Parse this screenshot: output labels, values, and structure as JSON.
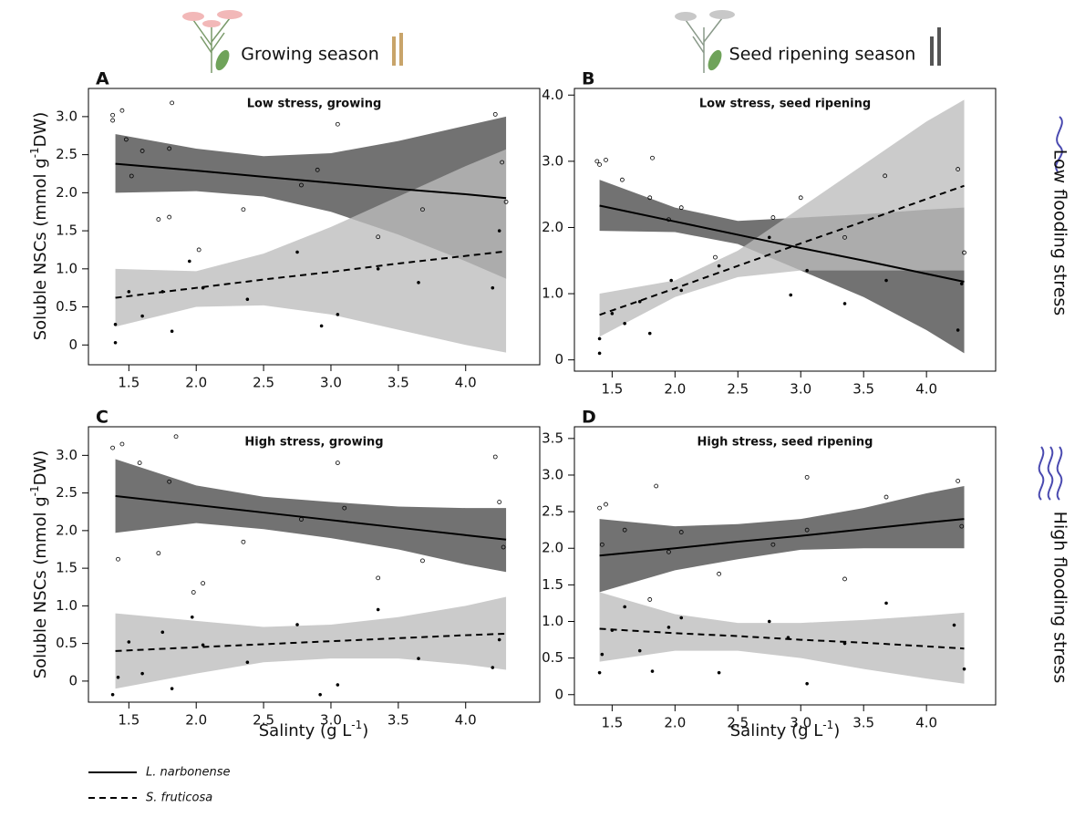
{
  "header": {
    "seasons": [
      "Growing season",
      "Seed ripening season"
    ],
    "flooding": [
      "Low flooding stress",
      "High flooding stress"
    ]
  },
  "axes": {
    "y_label": [
      "Soluble NSCs (mmol g",
      "-1",
      "DW)"
    ],
    "x_label": [
      "Salinty (g L",
      "-1",
      ")"
    ]
  },
  "chart_data": [
    {
      "type": "line",
      "panel_label": "A",
      "title": "Low stress, growing",
      "xlim": [
        1.2,
        4.55
      ],
      "xticks": [
        1.5,
        {
          "value": 2,
          "label": "2.0"
        },
        2.5,
        {
          "value": 3,
          "label": "3.0"
        },
        3.5,
        {
          "value": 4,
          "label": "4.0"
        }
      ],
      "ylim": [
        -0.26,
        3.37
      ],
      "yticks": [
        0,
        0.5,
        {
          "value": 1,
          "label": "1.0"
        },
        1.5,
        {
          "value": 2,
          "label": "2.0"
        },
        2.5,
        {
          "value": 3,
          "label": "3.0"
        }
      ],
      "series": [
        {
          "name": "L. narbonense",
          "line_style": "solid",
          "color": "#000000",
          "band_color": "#4a4a4a",
          "x": [
            1.4,
            2.0,
            2.5,
            3.0,
            3.5,
            4.0,
            4.3
          ],
          "values": [
            2.38,
            2.29,
            2.21,
            2.13,
            2.05,
            1.98,
            1.93
          ],
          "lower": [
            2.0,
            2.02,
            1.95,
            1.75,
            1.45,
            1.1,
            0.87
          ],
          "upper": [
            2.77,
            2.58,
            2.48,
            2.52,
            2.68,
            2.88,
            3.0
          ],
          "points": {
            "marker": "open",
            "x": [
              1.38,
              1.38,
              1.45,
              1.48,
              1.52,
              1.6,
              1.82,
              1.8,
              1.72,
              1.8,
              2.02,
              2.35,
              2.78,
              2.9,
              3.05,
              3.35,
              3.68,
              4.22,
              4.27,
              4.3
            ],
            "y": [
              3.02,
              2.95,
              3.08,
              2.7,
              2.22,
              2.55,
              3.18,
              2.58,
              1.65,
              1.68,
              1.25,
              1.78,
              2.1,
              2.3,
              2.9,
              1.42,
              1.78,
              3.03,
              2.4,
              1.88
            ]
          }
        },
        {
          "name": "S. fruticosa",
          "line_style": "dashed",
          "color": "#000000",
          "band_color": "#bdbdbd",
          "x": [
            1.4,
            2.0,
            2.5,
            3.0,
            3.5,
            4.0,
            4.3
          ],
          "values": [
            0.62,
            0.75,
            0.86,
            0.96,
            1.07,
            1.17,
            1.23
          ],
          "lower": [
            0.24,
            0.5,
            0.52,
            0.4,
            0.2,
            0.0,
            -0.1
          ],
          "upper": [
            1.0,
            0.97,
            1.2,
            1.55,
            1.95,
            2.35,
            2.57
          ],
          "points": {
            "marker": "filled",
            "x": [
              1.4,
              1.4,
              1.5,
              1.6,
              1.75,
              1.82,
              1.95,
              2.05,
              2.38,
              2.75,
              2.93,
              3.05,
              3.35,
              3.65,
              4.2,
              4.25
            ],
            "y": [
              0.03,
              0.27,
              0.7,
              0.38,
              0.7,
              0.18,
              1.1,
              0.75,
              0.6,
              1.22,
              0.25,
              0.4,
              1.0,
              0.82,
              0.75,
              1.5
            ]
          }
        }
      ]
    },
    {
      "type": "line",
      "panel_label": "B",
      "title": "Low stress, seed ripening",
      "xlim": [
        1.2,
        4.55
      ],
      "xticks": [
        1.5,
        {
          "value": 2,
          "label": "2.0"
        },
        2.5,
        {
          "value": 3,
          "label": "3.0"
        },
        3.5,
        {
          "value": 4,
          "label": "4.0"
        }
      ],
      "ylim": [
        -0.17,
        4.1
      ],
      "yticks": [
        0,
        {
          "value": 1,
          "label": "1.0"
        },
        {
          "value": 2,
          "label": "2.0"
        },
        {
          "value": 3,
          "label": "3.0"
        },
        {
          "value": 4,
          "label": "4.0"
        }
      ],
      "series": [
        {
          "line_style": "solid",
          "color": "#000000",
          "band_color": "#4a4a4a",
          "x": [
            1.4,
            2.0,
            2.5,
            3.0,
            3.5,
            4.0,
            4.3
          ],
          "values": [
            2.33,
            2.09,
            1.89,
            1.69,
            1.5,
            1.3,
            1.18
          ],
          "lower": [
            1.95,
            1.93,
            1.75,
            1.35,
            0.95,
            0.45,
            0.1
          ],
          "upper": [
            2.72,
            2.3,
            2.1,
            2.15,
            2.2,
            2.27,
            2.3
          ],
          "points": {
            "marker": "open",
            "x": [
              1.38,
              1.4,
              1.45,
              1.58,
              1.82,
              1.8,
              1.95,
              2.05,
              2.32,
              2.78,
              3.0,
              3.35,
              3.67,
              4.25,
              4.3
            ],
            "y": [
              3.0,
              2.95,
              3.02,
              2.72,
              3.05,
              2.45,
              2.12,
              2.3,
              1.55,
              2.15,
              2.45,
              1.85,
              2.78,
              2.88,
              1.62
            ]
          }
        },
        {
          "line_style": "dashed",
          "color": "#000000",
          "band_color": "#bdbdbd",
          "x": [
            1.4,
            2.0,
            2.5,
            3.0,
            3.5,
            4.0,
            4.3
          ],
          "values": [
            0.68,
            1.08,
            1.42,
            1.76,
            2.09,
            2.43,
            2.63
          ],
          "lower": [
            0.35,
            0.95,
            1.25,
            1.35,
            1.35,
            1.35,
            1.35
          ],
          "upper": [
            1.0,
            1.2,
            1.65,
            2.3,
            2.95,
            3.6,
            3.93
          ],
          "points": {
            "marker": "filled",
            "x": [
              1.4,
              1.4,
              1.5,
              1.6,
              1.72,
              1.8,
              1.97,
              2.05,
              2.35,
              2.75,
              2.92,
              3.05,
              3.35,
              3.68,
              4.25,
              4.28
            ],
            "y": [
              0.1,
              0.32,
              0.7,
              0.55,
              0.88,
              0.4,
              1.2,
              1.05,
              1.42,
              1.85,
              0.98,
              1.35,
              0.85,
              1.2,
              0.45,
              1.15
            ]
          }
        }
      ]
    },
    {
      "type": "line",
      "panel_label": "C",
      "title": "High stress, growing",
      "xlim": [
        1.2,
        4.55
      ],
      "xticks": [
        1.5,
        {
          "value": 2,
          "label": "2.0"
        },
        2.5,
        {
          "value": 3,
          "label": "3.0"
        },
        3.5,
        {
          "value": 4,
          "label": "4.0"
        }
      ],
      "ylim": [
        -0.28,
        3.38
      ],
      "yticks": [
        0,
        0.5,
        {
          "value": 1,
          "label": "1.0"
        },
        1.5,
        {
          "value": 2,
          "label": "2.0"
        },
        2.5,
        {
          "value": 3,
          "label": "3.0"
        }
      ],
      "series": [
        {
          "line_style": "solid",
          "color": "#000000",
          "band_color": "#4a4a4a",
          "x": [
            1.4,
            2.0,
            2.5,
            3.0,
            3.5,
            4.0,
            4.3
          ],
          "values": [
            2.46,
            2.34,
            2.24,
            2.14,
            2.04,
            1.94,
            1.88
          ],
          "lower": [
            1.97,
            2.1,
            2.02,
            1.9,
            1.75,
            1.55,
            1.45
          ],
          "upper": [
            2.95,
            2.6,
            2.45,
            2.38,
            2.32,
            2.3,
            2.3
          ],
          "points": {
            "marker": "open",
            "x": [
              1.38,
              1.45,
              1.42,
              1.58,
              1.85,
              1.8,
              1.72,
              2.05,
              1.98,
              2.35,
              2.78,
              3.05,
              3.1,
              3.35,
              3.68,
              4.22,
              4.25,
              4.28
            ],
            "y": [
              3.1,
              3.15,
              1.62,
              2.9,
              3.25,
              2.65,
              1.7,
              1.3,
              1.18,
              1.85,
              2.15,
              2.9,
              2.3,
              1.37,
              1.6,
              2.98,
              2.38,
              1.78
            ]
          }
        },
        {
          "line_style": "dashed",
          "color": "#000000",
          "band_color": "#bdbdbd",
          "x": [
            1.4,
            2.0,
            2.5,
            3.0,
            3.5,
            4.0,
            4.3
          ],
          "values": [
            0.4,
            0.45,
            0.49,
            0.53,
            0.57,
            0.61,
            0.63
          ],
          "lower": [
            -0.1,
            0.1,
            0.25,
            0.3,
            0.3,
            0.22,
            0.15
          ],
          "upper": [
            0.9,
            0.8,
            0.72,
            0.75,
            0.85,
            1.0,
            1.12
          ],
          "points": {
            "marker": "filled",
            "x": [
              1.38,
              1.42,
              1.5,
              1.6,
              1.75,
              1.82,
              1.97,
              2.05,
              2.38,
              2.75,
              2.92,
              3.05,
              3.35,
              3.65,
              4.2,
              4.25
            ],
            "y": [
              -0.18,
              0.05,
              0.52,
              0.1,
              0.65,
              -0.1,
              0.85,
              0.48,
              0.25,
              0.75,
              -0.18,
              -0.05,
              0.95,
              0.3,
              0.18,
              0.55
            ]
          }
        }
      ]
    },
    {
      "type": "line",
      "panel_label": "D",
      "title": "High stress, seed ripening",
      "xlim": [
        1.2,
        4.55
      ],
      "xticks": [
        1.5,
        {
          "value": 2,
          "label": "2.0"
        },
        2.5,
        {
          "value": 3,
          "label": "3.0"
        },
        3.5,
        {
          "value": 4,
          "label": "4.0"
        }
      ],
      "ylim": [
        -0.14,
        3.66
      ],
      "yticks": [
        0,
        0.5,
        {
          "value": 1,
          "label": "1.0"
        },
        1.5,
        {
          "value": 2,
          "label": "2.0"
        },
        2.5,
        {
          "value": 3,
          "label": "3.0"
        },
        3.5
      ],
      "series": [
        {
          "line_style": "solid",
          "color": "#000000",
          "band_color": "#4a4a4a",
          "x": [
            1.4,
            2.0,
            2.5,
            3.0,
            3.5,
            4.0,
            4.3
          ],
          "values": [
            1.9,
            2.0,
            2.09,
            2.17,
            2.26,
            2.35,
            2.4
          ],
          "lower": [
            1.4,
            1.7,
            1.85,
            1.98,
            2.0,
            2.0,
            2.0
          ],
          "upper": [
            2.4,
            2.3,
            2.33,
            2.4,
            2.55,
            2.75,
            2.85
          ],
          "points": {
            "marker": "open",
            "x": [
              1.4,
              1.45,
              1.42,
              1.6,
              1.85,
              1.8,
              1.95,
              2.05,
              2.35,
              2.78,
              3.05,
              3.05,
              3.35,
              3.68,
              4.25,
              4.28
            ],
            "y": [
              2.55,
              2.6,
              2.05,
              2.25,
              2.85,
              1.3,
              1.95,
              2.22,
              1.65,
              2.05,
              2.97,
              2.25,
              1.58,
              2.7,
              2.92,
              2.3
            ]
          }
        },
        {
          "line_style": "dashed",
          "color": "#000000",
          "band_color": "#bdbdbd",
          "x": [
            1.4,
            2.0,
            2.5,
            3.0,
            3.5,
            4.0,
            4.3
          ],
          "values": [
            0.9,
            0.84,
            0.8,
            0.75,
            0.71,
            0.66,
            0.63
          ],
          "lower": [
            0.45,
            0.6,
            0.6,
            0.5,
            0.35,
            0.22,
            0.15
          ],
          "upper": [
            1.4,
            1.1,
            0.98,
            0.98,
            1.02,
            1.08,
            1.12
          ],
          "points": {
            "marker": "filled",
            "x": [
              1.4,
              1.42,
              1.5,
              1.6,
              1.72,
              1.82,
              1.95,
              2.05,
              2.35,
              2.75,
              2.9,
              3.05,
              3.35,
              3.68,
              4.22,
              4.3
            ],
            "y": [
              0.3,
              0.55,
              0.88,
              1.2,
              0.6,
              0.32,
              0.92,
              1.05,
              0.3,
              1.0,
              0.78,
              0.15,
              0.7,
              1.25,
              0.95,
              0.35
            ]
          }
        }
      ]
    }
  ]
}
